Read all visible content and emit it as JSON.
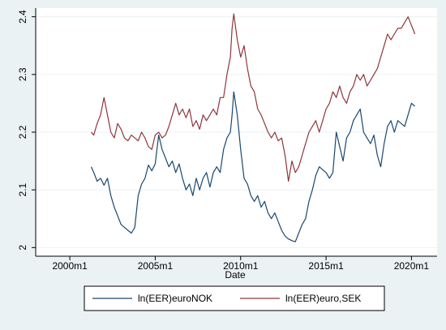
{
  "chart_data": {
    "type": "line",
    "title": "",
    "xlabel": "Date",
    "ylabel": "",
    "xlim": [
      1998.0,
      2021.5
    ],
    "ylim": [
      1.985,
      2.415
    ],
    "x_ticks": [
      {
        "value": 2000.0,
        "label": "2000m1"
      },
      {
        "value": 2005.0,
        "label": "2005m1"
      },
      {
        "value": 2010.0,
        "label": "2010m1"
      },
      {
        "value": 2015.0,
        "label": "2015m1"
      },
      {
        "value": 2020.0,
        "label": "2020m1"
      }
    ],
    "y_ticks": [
      {
        "value": 2.0,
        "label": "2"
      },
      {
        "value": 2.1,
        "label": "2.1"
      },
      {
        "value": 2.2,
        "label": "2.2"
      },
      {
        "value": 2.3,
        "label": "2.3"
      },
      {
        "value": 2.4,
        "label": "2.4"
      }
    ],
    "grid": true,
    "legend_position": "bottom",
    "colors": {
      "background": "#eaf2f3",
      "plot_background": "#ffffff",
      "grid": "#eaf2f3",
      "nok": "#1a476f",
      "sek": "#90353b"
    },
    "series": [
      {
        "name": "ln(EER)euroNOK",
        "color": "#1a476f",
        "points": [
          [
            2001.25,
            2.14
          ],
          [
            2001.4,
            2.13
          ],
          [
            2001.6,
            2.115
          ],
          [
            2001.8,
            2.12
          ],
          [
            2002.0,
            2.108
          ],
          [
            2002.2,
            2.12
          ],
          [
            2002.4,
            2.09
          ],
          [
            2002.6,
            2.07
          ],
          [
            2002.8,
            2.055
          ],
          [
            2003.0,
            2.04
          ],
          [
            2003.2,
            2.035
          ],
          [
            2003.4,
            2.03
          ],
          [
            2003.6,
            2.025
          ],
          [
            2003.8,
            2.035
          ],
          [
            2004.0,
            2.09
          ],
          [
            2004.2,
            2.11
          ],
          [
            2004.4,
            2.12
          ],
          [
            2004.6,
            2.143
          ],
          [
            2004.8,
            2.133
          ],
          [
            2005.0,
            2.145
          ],
          [
            2005.2,
            2.195
          ],
          [
            2005.4,
            2.17
          ],
          [
            2005.6,
            2.155
          ],
          [
            2005.8,
            2.14
          ],
          [
            2006.0,
            2.15
          ],
          [
            2006.2,
            2.13
          ],
          [
            2006.4,
            2.145
          ],
          [
            2006.6,
            2.12
          ],
          [
            2006.8,
            2.1
          ],
          [
            2007.0,
            2.11
          ],
          [
            2007.2,
            2.09
          ],
          [
            2007.4,
            2.12
          ],
          [
            2007.6,
            2.1
          ],
          [
            2007.8,
            2.12
          ],
          [
            2008.0,
            2.13
          ],
          [
            2008.2,
            2.105
          ],
          [
            2008.4,
            2.13
          ],
          [
            2008.6,
            2.14
          ],
          [
            2008.8,
            2.13
          ],
          [
            2009.0,
            2.17
          ],
          [
            2009.2,
            2.19
          ],
          [
            2009.4,
            2.2
          ],
          [
            2009.5,
            2.23
          ],
          [
            2009.6,
            2.27
          ],
          [
            2009.8,
            2.23
          ],
          [
            2010.0,
            2.17
          ],
          [
            2010.2,
            2.12
          ],
          [
            2010.4,
            2.11
          ],
          [
            2010.6,
            2.09
          ],
          [
            2010.8,
            2.08
          ],
          [
            2011.0,
            2.09
          ],
          [
            2011.2,
            2.07
          ],
          [
            2011.4,
            2.08
          ],
          [
            2011.6,
            2.06
          ],
          [
            2011.8,
            2.05
          ],
          [
            2012.0,
            2.06
          ],
          [
            2012.2,
            2.045
          ],
          [
            2012.4,
            2.03
          ],
          [
            2012.6,
            2.02
          ],
          [
            2012.8,
            2.015
          ],
          [
            2013.0,
            2.012
          ],
          [
            2013.2,
            2.01
          ],
          [
            2013.4,
            2.025
          ],
          [
            2013.6,
            2.04
          ],
          [
            2013.8,
            2.05
          ],
          [
            2014.0,
            2.08
          ],
          [
            2014.2,
            2.1
          ],
          [
            2014.4,
            2.125
          ],
          [
            2014.6,
            2.14
          ],
          [
            2014.8,
            2.135
          ],
          [
            2015.0,
            2.13
          ],
          [
            2015.2,
            2.12
          ],
          [
            2015.4,
            2.13
          ],
          [
            2015.6,
            2.2
          ],
          [
            2015.8,
            2.175
          ],
          [
            2016.0,
            2.15
          ],
          [
            2016.2,
            2.19
          ],
          [
            2016.4,
            2.2
          ],
          [
            2016.6,
            2.22
          ],
          [
            2016.8,
            2.23
          ],
          [
            2017.0,
            2.24
          ],
          [
            2017.2,
            2.2
          ],
          [
            2017.4,
            2.19
          ],
          [
            2017.6,
            2.18
          ],
          [
            2017.8,
            2.195
          ],
          [
            2018.0,
            2.16
          ],
          [
            2018.2,
            2.14
          ],
          [
            2018.4,
            2.18
          ],
          [
            2018.6,
            2.21
          ],
          [
            2018.8,
            2.22
          ],
          [
            2019.0,
            2.2
          ],
          [
            2019.2,
            2.22
          ],
          [
            2019.4,
            2.215
          ],
          [
            2019.6,
            2.21
          ],
          [
            2019.8,
            2.23
          ],
          [
            2020.0,
            2.25
          ],
          [
            2020.2,
            2.245
          ]
        ]
      },
      {
        "name": "ln(EER)euro,SEK",
        "color": "#90353b",
        "points": [
          [
            2001.25,
            2.2
          ],
          [
            2001.4,
            2.195
          ],
          [
            2001.6,
            2.215
          ],
          [
            2001.8,
            2.23
          ],
          [
            2002.0,
            2.26
          ],
          [
            2002.2,
            2.23
          ],
          [
            2002.4,
            2.2
          ],
          [
            2002.6,
            2.19
          ],
          [
            2002.8,
            2.215
          ],
          [
            2003.0,
            2.205
          ],
          [
            2003.2,
            2.19
          ],
          [
            2003.4,
            2.185
          ],
          [
            2003.6,
            2.195
          ],
          [
            2003.8,
            2.19
          ],
          [
            2004.0,
            2.185
          ],
          [
            2004.2,
            2.2
          ],
          [
            2004.4,
            2.19
          ],
          [
            2004.6,
            2.175
          ],
          [
            2004.8,
            2.17
          ],
          [
            2005.0,
            2.195
          ],
          [
            2005.2,
            2.2
          ],
          [
            2005.4,
            2.19
          ],
          [
            2005.6,
            2.195
          ],
          [
            2005.8,
            2.21
          ],
          [
            2006.0,
            2.23
          ],
          [
            2006.2,
            2.25
          ],
          [
            2006.4,
            2.23
          ],
          [
            2006.6,
            2.24
          ],
          [
            2006.8,
            2.225
          ],
          [
            2007.0,
            2.24
          ],
          [
            2007.2,
            2.21
          ],
          [
            2007.4,
            2.22
          ],
          [
            2007.6,
            2.205
          ],
          [
            2007.8,
            2.23
          ],
          [
            2008.0,
            2.22
          ],
          [
            2008.2,
            2.23
          ],
          [
            2008.4,
            2.24
          ],
          [
            2008.6,
            2.23
          ],
          [
            2008.8,
            2.26
          ],
          [
            2009.0,
            2.26
          ],
          [
            2009.2,
            2.3
          ],
          [
            2009.4,
            2.33
          ],
          [
            2009.5,
            2.38
          ],
          [
            2009.6,
            2.405
          ],
          [
            2009.8,
            2.36
          ],
          [
            2010.0,
            2.33
          ],
          [
            2010.2,
            2.35
          ],
          [
            2010.4,
            2.31
          ],
          [
            2010.6,
            2.28
          ],
          [
            2010.8,
            2.27
          ],
          [
            2011.0,
            2.24
          ],
          [
            2011.2,
            2.23
          ],
          [
            2011.4,
            2.215
          ],
          [
            2011.6,
            2.2
          ],
          [
            2011.8,
            2.19
          ],
          [
            2012.0,
            2.2
          ],
          [
            2012.2,
            2.185
          ],
          [
            2012.4,
            2.19
          ],
          [
            2012.6,
            2.16
          ],
          [
            2012.8,
            2.115
          ],
          [
            2013.0,
            2.15
          ],
          [
            2013.2,
            2.13
          ],
          [
            2013.4,
            2.14
          ],
          [
            2013.6,
            2.16
          ],
          [
            2013.8,
            2.18
          ],
          [
            2014.0,
            2.2
          ],
          [
            2014.2,
            2.21
          ],
          [
            2014.4,
            2.22
          ],
          [
            2014.6,
            2.2
          ],
          [
            2014.8,
            2.22
          ],
          [
            2015.0,
            2.24
          ],
          [
            2015.2,
            2.25
          ],
          [
            2015.4,
            2.27
          ],
          [
            2015.6,
            2.26
          ],
          [
            2015.8,
            2.28
          ],
          [
            2016.0,
            2.26
          ],
          [
            2016.2,
            2.25
          ],
          [
            2016.4,
            2.27
          ],
          [
            2016.6,
            2.28
          ],
          [
            2016.8,
            2.3
          ],
          [
            2017.0,
            2.29
          ],
          [
            2017.2,
            2.3
          ],
          [
            2017.4,
            2.28
          ],
          [
            2017.6,
            2.29
          ],
          [
            2017.8,
            2.3
          ],
          [
            2018.0,
            2.31
          ],
          [
            2018.2,
            2.33
          ],
          [
            2018.4,
            2.35
          ],
          [
            2018.6,
            2.37
          ],
          [
            2018.8,
            2.36
          ],
          [
            2019.0,
            2.37
          ],
          [
            2019.2,
            2.38
          ],
          [
            2019.4,
            2.38
          ],
          [
            2019.6,
            2.39
          ],
          [
            2019.8,
            2.4
          ],
          [
            2020.0,
            2.385
          ],
          [
            2020.2,
            2.37
          ]
        ]
      }
    ]
  }
}
